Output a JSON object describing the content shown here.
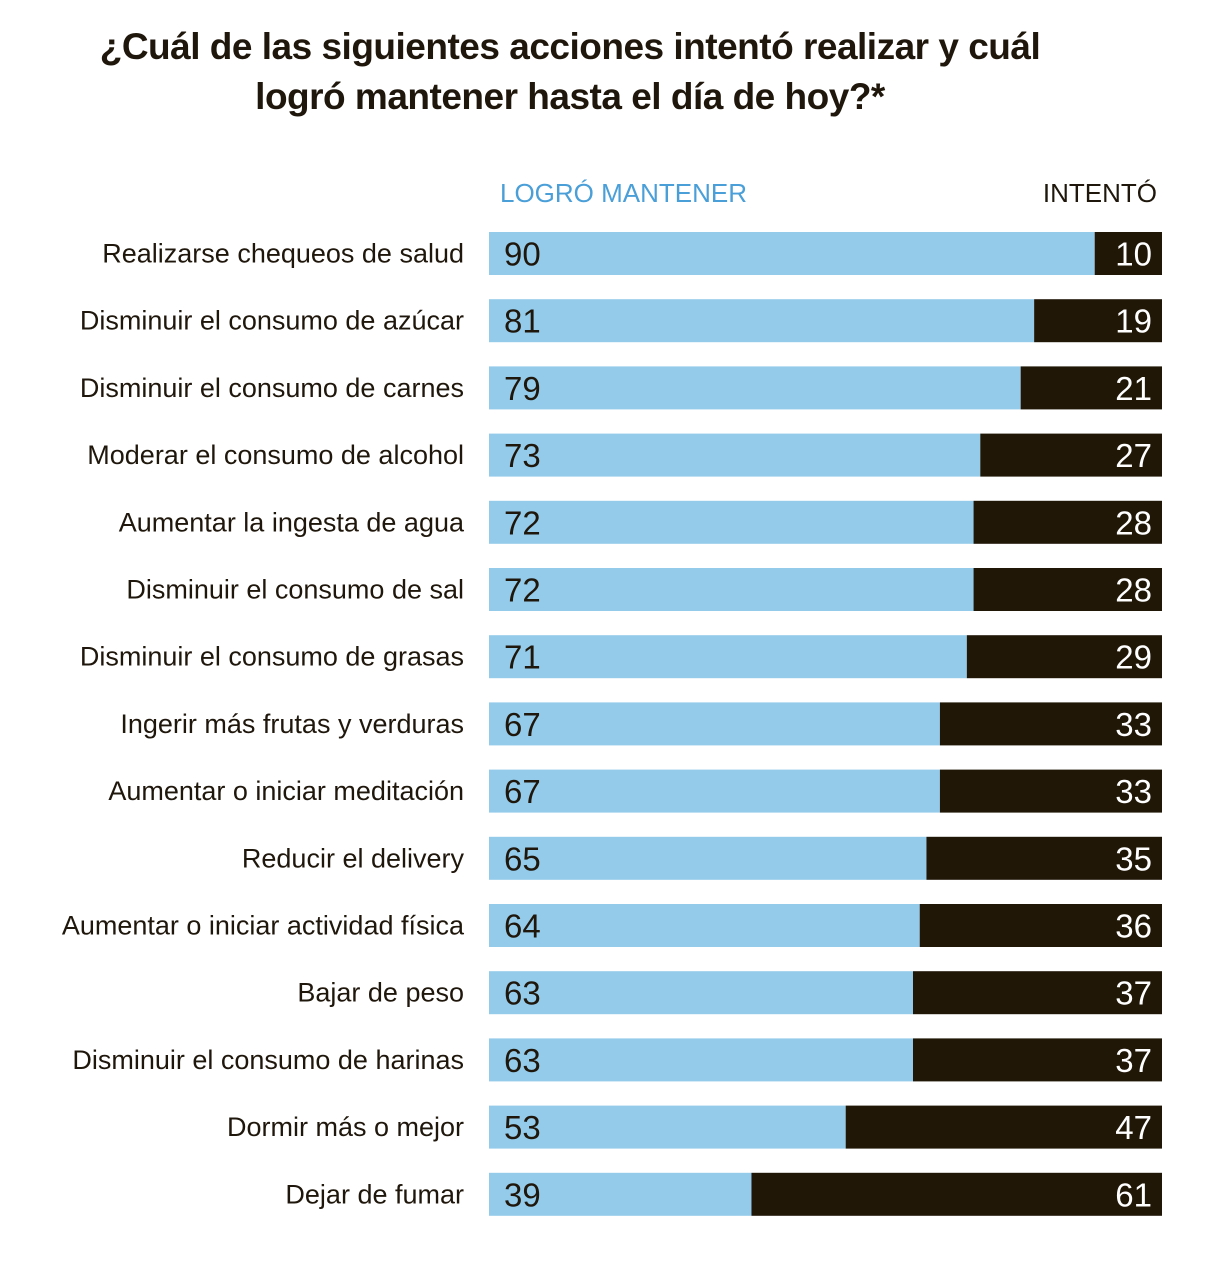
{
  "chart_data": {
    "type": "bar",
    "stacked": true,
    "orientation": "horizontal",
    "title": "¿Cuál de las siguientes acciones intentó realizar y cuál logró mantener hasta el día de hoy?*",
    "title_lines": [
      "¿Cuál de las siguientes acciones intentó realizar y cuál",
      "logró mantener hasta el día de hoy?*"
    ],
    "xlabel": "",
    "ylabel": "",
    "xlim": [
      0,
      100
    ],
    "grid": false,
    "legend": [
      "LOGRÓ MANTENER",
      "INTENTÓ"
    ],
    "legend_placement": "top",
    "categories": [
      "Realizarse chequeos de salud",
      "Disminuir el consumo de azúcar",
      "Disminuir el consumo de carnes",
      "Moderar el consumo de alcohol",
      "Aumentar la ingesta de agua",
      "Disminuir el consumo de sal",
      "Disminuir el consumo de grasas",
      "Ingerir más frutas y verduras",
      "Aumentar o iniciar meditación",
      "Reducir el delivery",
      "Aumentar o iniciar actividad física",
      "Bajar de peso",
      "Disminuir el consumo de harinas",
      "Dormir más o mejor",
      "Dejar de fumar"
    ],
    "series": [
      {
        "name": "LOGRÓ MANTENER",
        "color": "#94cbea",
        "label_color": "#1f170c",
        "values": [
          90,
          81,
          79,
          73,
          72,
          72,
          71,
          67,
          67,
          65,
          64,
          63,
          63,
          53,
          39
        ]
      },
      {
        "name": "INTENTÓ",
        "color": "#201707",
        "label_color": "#ffffff",
        "values": [
          10,
          19,
          21,
          27,
          28,
          28,
          29,
          33,
          33,
          35,
          36,
          37,
          37,
          47,
          61
        ]
      }
    ]
  }
}
